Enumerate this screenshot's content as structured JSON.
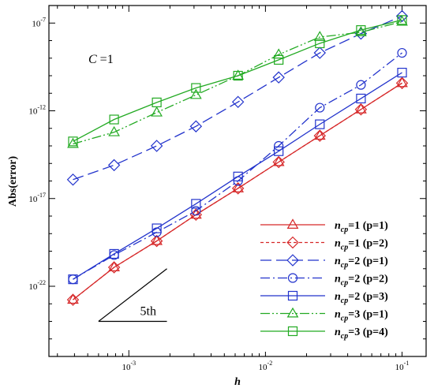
{
  "chart_data": {
    "type": "line",
    "xlabel": "h",
    "ylabel": "Abs(error)",
    "xscale": "log",
    "yscale": "log",
    "xlim": [
      0.00026,
      0.15
    ],
    "ylim": [
      1e-26,
      1e-06
    ],
    "x_ticks": [
      {
        "value": 0.001,
        "base": "10",
        "exp": "-3"
      },
      {
        "value": 0.01,
        "base": "10",
        "exp": "-2"
      },
      {
        "value": 0.1,
        "base": "10",
        "exp": "-1"
      }
    ],
    "y_ticks": [
      {
        "value": 1e-22,
        "base": "10",
        "exp": "-22"
      },
      {
        "value": 1e-17,
        "base": "10",
        "exp": "-17"
      },
      {
        "value": 1e-12,
        "base": "10",
        "exp": "-12"
      },
      {
        "value": 1e-07,
        "base": "10",
        "exp": "-7"
      }
    ],
    "annotation": {
      "prefix": "C",
      "suffix": " =1"
    },
    "slope": {
      "label": "5th",
      "x": [
        0.0006,
        0.0019
      ],
      "y": [
        1e-24,
        1e-21
      ]
    },
    "legend_position": "lower-right",
    "x": [
      0.00039,
      0.00078,
      0.0016,
      0.0031,
      0.0063,
      0.0125,
      0.025,
      0.05,
      0.1
    ],
    "series": [
      {
        "name_main": "n",
        "name_sub": "cp",
        "name_rest": "=1  (p=1)",
        "color": "#d62728",
        "dash": "",
        "marker": "triangle",
        "values": [
          1.7e-23,
          1.2e-21,
          3.8e-20,
          1.2e-18,
          3.8e-17,
          1.2e-15,
          3.8e-14,
          1.2e-12,
          3.8e-11
        ]
      },
      {
        "name_main": "n",
        "name_sub": "cp",
        "name_rest": "=1  (p=2)",
        "color": "#d62728",
        "dash": "4,3",
        "marker": "diamond",
        "values": [
          1.7e-23,
          1.2e-21,
          3.8e-20,
          1.2e-18,
          3.8e-17,
          1.2e-15,
          3.8e-14,
          1.2e-12,
          3.8e-11
        ]
      },
      {
        "name_main": "n",
        "name_sub": "cp",
        "name_rest": "=2  (p=1)",
        "color": "#2233cc",
        "dash": "14,6",
        "marker": "diamond",
        "values": [
          1.2e-16,
          8e-16,
          1e-14,
          1.3e-13,
          3.2e-12,
          8e-11,
          2e-09,
          2.5e-08,
          2.5e-07
        ]
      },
      {
        "name_main": "n",
        "name_sub": "cp",
        "name_rest": "=2  (p=2)",
        "color": "#2233cc",
        "dash": "12,4,2,4",
        "marker": "circle",
        "values": [
          2.5e-22,
          6e-21,
          1.2e-19,
          2e-18,
          1e-16,
          1e-14,
          1.5e-12,
          3e-11,
          2e-09
        ]
      },
      {
        "name_main": "n",
        "name_sub": "cp",
        "name_rest": "=2  (p=3)",
        "color": "#2233cc",
        "dash": "",
        "marker": "square",
        "values": [
          2.5e-22,
          7e-21,
          2e-19,
          5e-18,
          1.8e-16,
          5e-15,
          1.7e-13,
          5e-12,
          1.5e-10
        ]
      },
      {
        "name_main": "n",
        "name_sub": "cp",
        "name_rest": "=3  (p=1)",
        "color": "#22aa22",
        "dash": "12,3,2,3,2,3",
        "marker": "triangle",
        "values": [
          1.3e-14,
          6e-14,
          8e-13,
          8e-12,
          1e-10,
          1.6e-09,
          1.6e-08,
          3e-08,
          1.2e-07
        ]
      },
      {
        "name_main": "n",
        "name_sub": "cp",
        "name_rest": "=3  (p=4)",
        "color": "#22aa22",
        "dash": "",
        "marker": "square",
        "values": [
          1.8e-14,
          3.2e-13,
          3e-12,
          2e-11,
          1e-10,
          8e-10,
          7e-09,
          4e-08,
          1.5e-07
        ]
      }
    ]
  }
}
